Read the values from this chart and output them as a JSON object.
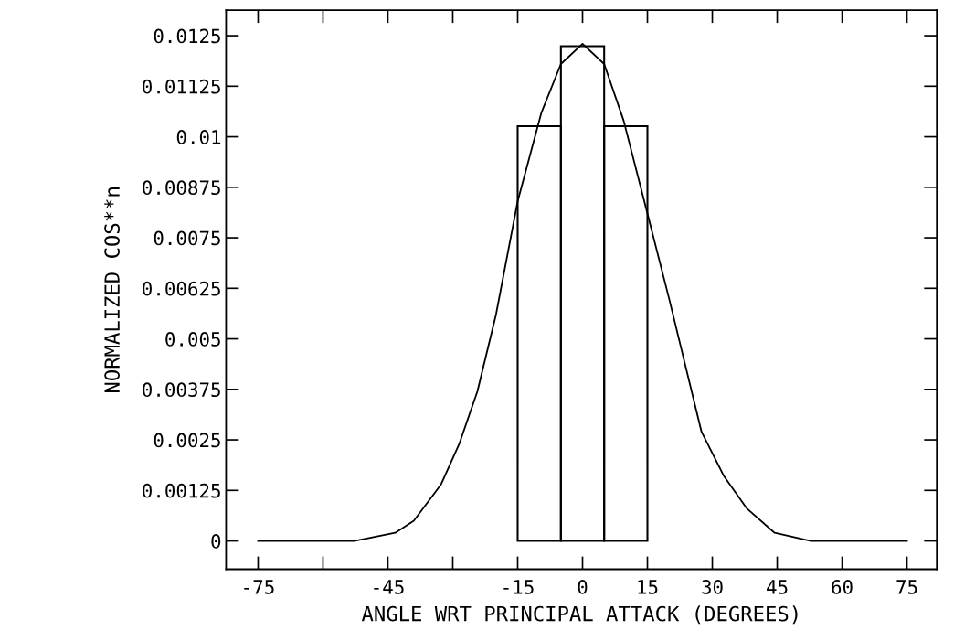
{
  "chart_data": {
    "type": "histogram",
    "xlabel": "ANGLE WRT PRINCIPAL ATTACK (DEGREES)",
    "ylabel": "NORMALIZED COS**n",
    "series": [
      {
        "color": "#000000",
        "bins": [
          -15,
          -5,
          5,
          15
        ],
        "values": [
          0.01026,
          0.01224,
          0.01026
        ]
      },
      {
        "type": "line",
        "color": "#000000",
        "x": [
          -75,
          -52.8,
          -43.3,
          -39,
          -32.7,
          -28.5,
          -24.3,
          -20,
          -15,
          -9.5,
          -5,
          0,
          5,
          9.5,
          15,
          20,
          27.5,
          32.7,
          38,
          44.4,
          52.8,
          75
        ],
        "values": [
          0,
          0,
          0.0002,
          0.0005,
          0.0014,
          0.0024,
          0.0037,
          0.0056,
          0.0084,
          0.0106,
          0.0118,
          0.0123,
          0.0118,
          0.0104,
          0.0081,
          0.006,
          0.0027,
          0.0016,
          0.0008,
          0.0002,
          0,
          0
        ]
      }
    ],
    "xlim": [
      -82.4,
      81.9
    ],
    "ylim": [
      -0.0007,
      0.01313
    ],
    "xticks": [
      -75,
      {
        "value": -60,
        "label": null
      },
      -45,
      {
        "value": -30,
        "label": null
      },
      -15,
      0,
      15,
      30,
      45,
      60,
      75
    ],
    "yticks": [
      0,
      0.00125,
      0.0025,
      0.00375,
      0.005,
      0.00625,
      0.0075,
      0.00875,
      0.01,
      0.01125,
      0.0125
    ],
    "grid": false,
    "legend": false
  }
}
